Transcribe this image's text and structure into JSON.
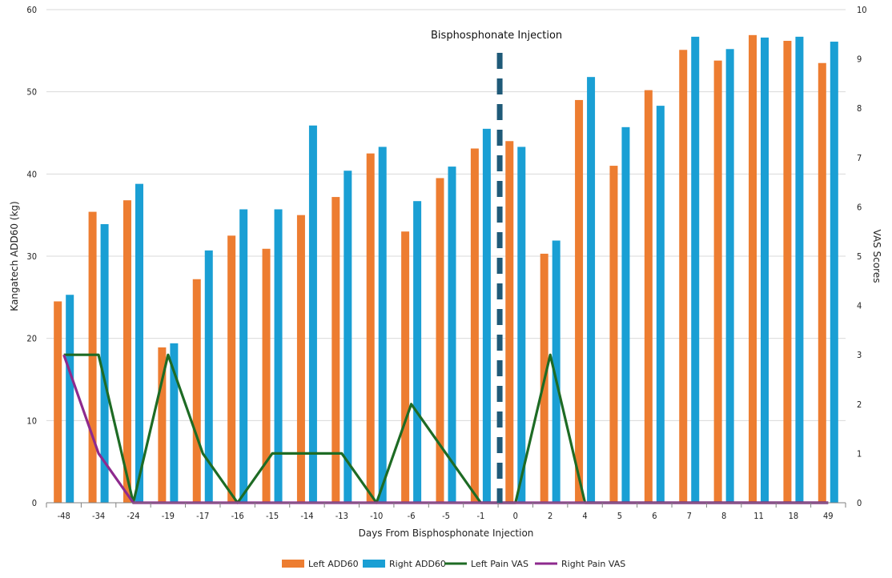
{
  "chart_data": {
    "type": "bar",
    "categories": [
      "-48",
      "-34",
      "-24",
      "-19",
      "-17",
      "-16",
      "-15",
      "-14",
      "-13",
      "-10",
      "-6",
      "-5",
      "-1",
      "0",
      "2",
      "4",
      "5",
      "6",
      "7",
      "8",
      "11",
      "18",
      "49"
    ],
    "series": [
      {
        "name": "Left ADD60",
        "kind": "bar",
        "axis": "left",
        "color": "#ed7d31",
        "values": [
          24.5,
          35.4,
          36.8,
          18.9,
          27.2,
          32.5,
          30.9,
          35.0,
          37.2,
          42.5,
          33.0,
          39.5,
          43.1,
          44.0,
          30.3,
          49.0,
          41.0,
          50.2,
          55.1,
          53.8,
          56.9,
          56.2,
          53.5
        ]
      },
      {
        "name": "Right ADD60",
        "kind": "bar",
        "axis": "left",
        "color": "#1a9fd4",
        "values": [
          25.3,
          33.9,
          38.8,
          19.4,
          30.7,
          35.7,
          35.7,
          45.9,
          40.4,
          43.3,
          36.7,
          40.9,
          45.5,
          43.3,
          31.9,
          51.8,
          45.7,
          48.3,
          56.7,
          55.2,
          56.6,
          56.7,
          56.1
        ]
      },
      {
        "name": "Left Pain VAS",
        "kind": "line",
        "axis": "right",
        "color": "#1e6b24",
        "values": [
          3,
          3,
          0,
          3,
          1,
          0,
          1,
          1,
          1,
          0,
          2,
          1,
          0,
          0,
          3,
          0,
          0,
          0,
          0,
          0,
          0,
          0,
          0
        ]
      },
      {
        "name": "Right Pain VAS",
        "kind": "line",
        "axis": "right",
        "color": "#8e2a8e",
        "values": [
          3,
          1,
          0,
          0,
          0,
          0,
          0,
          0,
          0,
          0,
          0,
          0,
          0,
          0,
          0,
          0,
          0,
          0,
          0,
          0,
          0,
          0,
          0
        ]
      }
    ],
    "title": "",
    "xlabel": "Days From Bisphosphonate Injection",
    "ylabel": "Kangatech ADD60 (kg)",
    "y2label": "VAS Scores",
    "ylim": [
      0,
      60
    ],
    "y2lim": [
      0,
      10
    ],
    "yticks": [
      "0",
      "10",
      "20",
      "30",
      "40",
      "50",
      "60"
    ],
    "y2ticks": [
      "0",
      "1",
      "2",
      "3",
      "4",
      "5",
      "6",
      "7",
      "8",
      "9",
      "10"
    ],
    "grid": "horizontal",
    "legend_position": "bottom",
    "annotation": {
      "text": "Bisphosphonate Injection",
      "between": [
        "-1",
        "0"
      ],
      "color": "#1f5a78"
    }
  }
}
